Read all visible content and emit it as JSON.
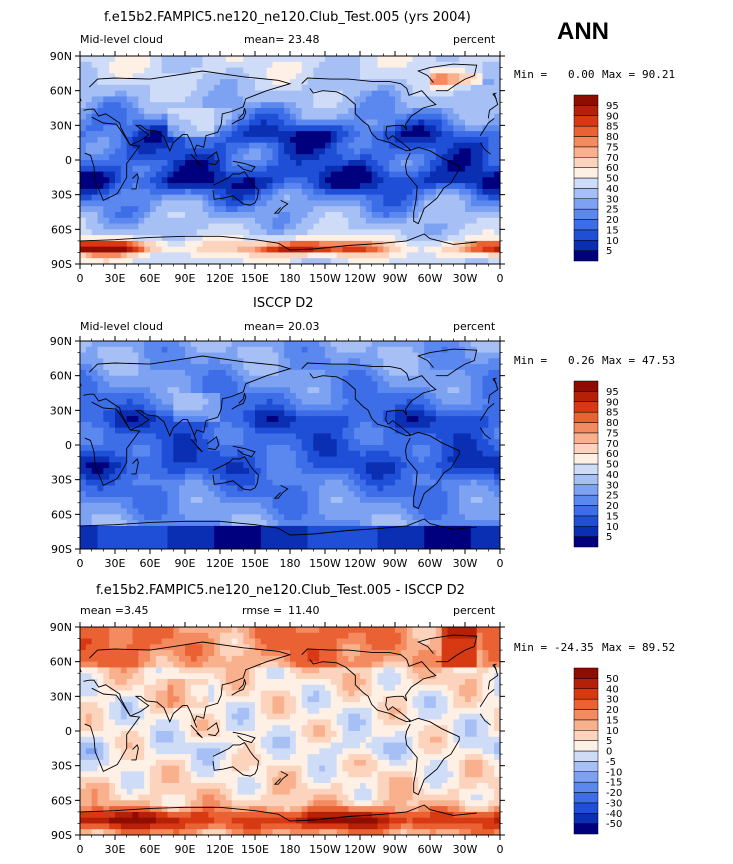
{
  "season": "ANN",
  "chart_data": [
    {
      "type": "heatmap",
      "title": "f.e15b2.FAMPIC5.ne120_ne120.Club_Test.005 (yrs 2004)",
      "field_label": "Mid-level cloud",
      "stat1_label": "mean=",
      "stat1_value": "23.48",
      "units": "percent",
      "min_label": "Min =",
      "min_value": "0.00",
      "max_label": "Max =",
      "max_value": "90.21",
      "colorbar_levels": [
        "5",
        "10",
        "15",
        "20",
        "25",
        "30",
        "40",
        "50",
        "60",
        "70",
        "75",
        "80",
        "85",
        "90",
        "95"
      ],
      "colors": [
        "#00007f",
        "#0a2fb3",
        "#1e4fd6",
        "#3d6ee8",
        "#5b88ef",
        "#7ea2f2",
        "#a6c0f5",
        "#cfdcf8",
        "#fff0e6",
        "#fcd3bd",
        "#f9b08d",
        "#f48a5f",
        "#ea6234",
        "#d73a12",
        "#b52008",
        "#8e0c00"
      ],
      "field": "model",
      "xlabels": [
        "0",
        "30E",
        "60E",
        "90E",
        "120E",
        "150E",
        "180",
        "150W",
        "120W",
        "90W",
        "60W",
        "30W",
        "0"
      ],
      "ylabels": [
        "90N",
        "60N",
        "30N",
        "0",
        "30S",
        "60S",
        "90S"
      ]
    },
    {
      "type": "heatmap",
      "title": "ISCCP D2",
      "field_label": "Mid-level cloud",
      "stat1_label": "mean=",
      "stat1_value": "20.03",
      "units": "percent",
      "min_label": "Min =",
      "min_value": "0.26",
      "max_label": "Max =",
      "max_value": "47.53",
      "colorbar_levels": [
        "5",
        "10",
        "15",
        "20",
        "25",
        "30",
        "40",
        "50",
        "60",
        "70",
        "75",
        "80",
        "85",
        "90",
        "95"
      ],
      "colors": [
        "#00007f",
        "#0a2fb3",
        "#1e4fd6",
        "#3d6ee8",
        "#5b88ef",
        "#7ea2f2",
        "#a6c0f5",
        "#cfdcf8",
        "#fff0e6",
        "#fcd3bd",
        "#f9b08d",
        "#f48a5f",
        "#ea6234",
        "#d73a12",
        "#b52008",
        "#8e0c00"
      ],
      "field": "obs",
      "xlabels": [
        "0",
        "30E",
        "60E",
        "90E",
        "120E",
        "150E",
        "180",
        "150W",
        "120W",
        "90W",
        "60W",
        "30W",
        "0"
      ],
      "ylabels": [
        "90N",
        "60N",
        "30N",
        "0",
        "30S",
        "60S",
        "90S"
      ]
    },
    {
      "type": "heatmap",
      "title": "f.e15b2.FAMPIC5.ne120_ne120.Club_Test.005 - ISCCP D2",
      "field_label": "",
      "stat1_label": "mean =",
      "stat1_value": "3.45",
      "stat2_label": "rmse =",
      "stat2_value": "11.40",
      "units": "percent",
      "min_label": "Min =",
      "min_value": "-24.35",
      "max_label": "Max =",
      "max_value": "89.52",
      "colorbar_levels": [
        "-50",
        "-40",
        "-30",
        "-20",
        "-15",
        "-10",
        "-5",
        "0",
        "5",
        "10",
        "15",
        "20",
        "30",
        "40",
        "50"
      ],
      "colors": [
        "#00007f",
        "#0a2fb3",
        "#1e4fd6",
        "#3d6ee8",
        "#5b88ef",
        "#7ea2f2",
        "#a6c0f5",
        "#cfdcf8",
        "#fff0e6",
        "#fcd3bd",
        "#f9b08d",
        "#f48a5f",
        "#ea6234",
        "#d73a12",
        "#b52008",
        "#8e0c00"
      ],
      "field": "diff",
      "xlabels": [
        "0",
        "30E",
        "60E",
        "90E",
        "120E",
        "150E",
        "180",
        "150W",
        "120W",
        "90W",
        "60W",
        "30W",
        "0"
      ],
      "ylabels": [
        "90N",
        "60N",
        "30N",
        "0",
        "30S",
        "60S",
        "90S"
      ]
    }
  ]
}
